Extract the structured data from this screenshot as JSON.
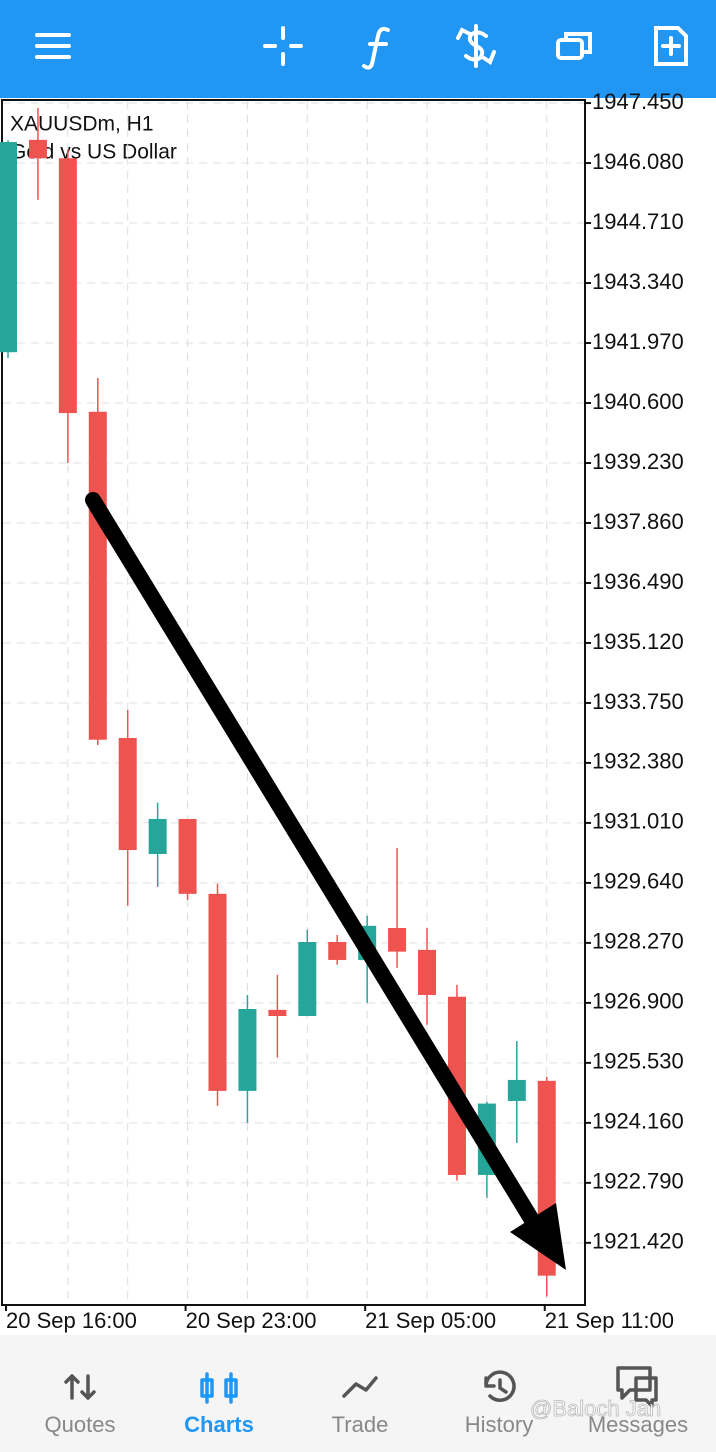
{
  "chart_data": {
    "type": "candlestick",
    "title": "XAUUSDm, H1",
    "subtitle": "Gold vs US Dollar",
    "categories": [
      "20 Sep 16:00",
      null,
      null,
      null,
      null,
      null,
      "20 Sep 23:00",
      null,
      null,
      null,
      null,
      null,
      "21 Sep 05:00",
      null,
      null,
      null,
      null,
      null,
      "21 Sep 11:00"
    ],
    "up_color": "#26a69a",
    "down_color": "#ef5350",
    "series": [
      {
        "name": "open",
        "values": [
          1941.76,
          1946.61,
          1946.19,
          1940.4,
          1932.95,
          1930.3,
          1931.1,
          1929.39,
          1924.89,
          1926.74,
          1926.6,
          1928.29,
          1927.88,
          1928.61,
          1928.11,
          1927.04,
          1922.97,
          1924.66,
          1925.12
        ]
      },
      {
        "name": "high",
        "values": [
          1946.6,
          1947.34,
          1946.38,
          1941.17,
          1933.59,
          1931.47,
          1931.1,
          1929.62,
          1927.08,
          1927.54,
          1928.57,
          1928.45,
          1928.89,
          1930.44,
          1928.61,
          1927.31,
          1924.64,
          1926.03,
          1925.21
        ]
      },
      {
        "name": "low",
        "values": [
          1941.63,
          1945.24,
          1939.23,
          1932.79,
          1929.12,
          1929.55,
          1929.25,
          1924.55,
          1924.16,
          1925.65,
          1926.6,
          1927.77,
          1926.9,
          1927.7,
          1926.4,
          1922.84,
          1922.45,
          1923.7,
          1920.19
        ]
      },
      {
        "name": "close",
        "values": [
          1946.56,
          1946.19,
          1940.37,
          1932.91,
          1930.39,
          1931.1,
          1929.39,
          1924.89,
          1926.76,
          1926.6,
          1928.29,
          1927.88,
          1928.66,
          1928.07,
          1927.08,
          1922.97,
          1924.6,
          1925.14,
          1920.67
        ]
      }
    ],
    "ylim": [
      1920.0,
      1947.52
    ],
    "yticks": [
      {
        "value": 1947.45,
        "label": "1947.450"
      },
      {
        "value": 1946.08,
        "label": "1946.080"
      },
      {
        "value": 1944.71,
        "label": "1944.710"
      },
      {
        "value": 1943.34,
        "label": "1943.340"
      },
      {
        "value": 1941.97,
        "label": "1941.970"
      },
      {
        "value": 1940.6,
        "label": "1940.600"
      },
      {
        "value": 1939.23,
        "label": "1939.230"
      },
      {
        "value": 1937.86,
        "label": "1937.860"
      },
      {
        "value": 1936.49,
        "label": "1936.490"
      },
      {
        "value": 1935.12,
        "label": "1935.120"
      },
      {
        "value": 1933.75,
        "label": "1933.750"
      },
      {
        "value": 1932.38,
        "label": "1932.380"
      },
      {
        "value": 1931.01,
        "label": "1931.010"
      },
      {
        "value": 1929.64,
        "label": "1929.640"
      },
      {
        "value": 1928.27,
        "label": "1928.270"
      },
      {
        "value": 1926.9,
        "label": "1926.900"
      },
      {
        "value": 1925.53,
        "label": "1925.530"
      },
      {
        "value": 1924.16,
        "label": "1924.160"
      },
      {
        "value": 1922.79,
        "label": "1922.790"
      },
      {
        "value": 1921.42,
        "label": "1921.420"
      }
    ],
    "grid": true
  },
  "nav": {
    "tabs": [
      "Quotes",
      "Charts",
      "Trade",
      "History",
      "Messages"
    ],
    "active": "Charts"
  },
  "watermark": "@Baloch Jan"
}
